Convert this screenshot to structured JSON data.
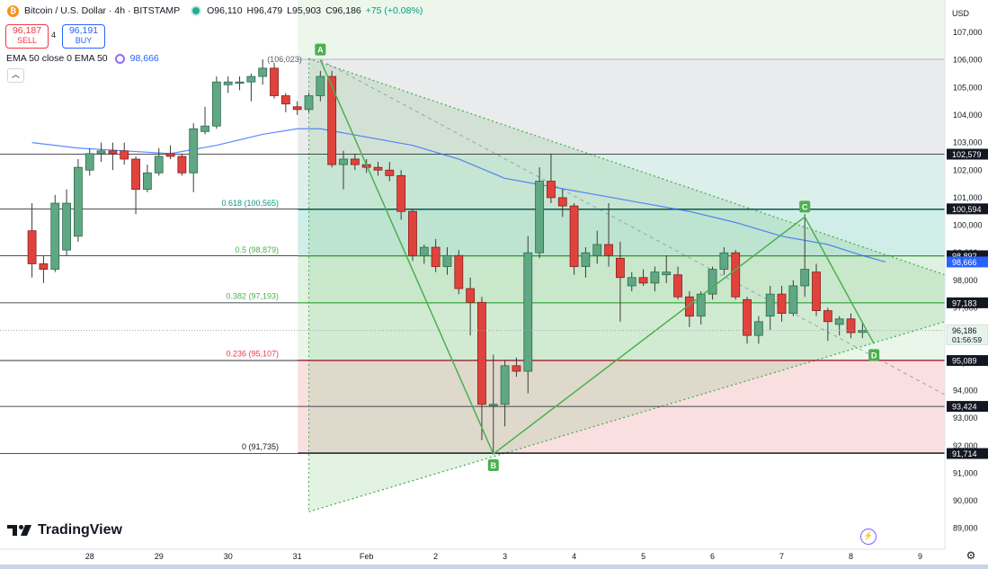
{
  "header": {
    "coin_glyph": "₿",
    "symbol_title": "Bitcoin / U.S. Dollar · 4h · BITSTAMP",
    "ohlc": {
      "open": "O96,110",
      "high": "H96,479",
      "low": "L95,903",
      "close": "C96,186",
      "change": "+75 (+0.08%)"
    },
    "sell_price": "96,187",
    "sell_label": "SELL",
    "spread": "4",
    "buy_price": "96,191",
    "buy_label": "BUY",
    "indicator_label": "EMA 50 close 0 EMA 50",
    "indicator_value": "98,666",
    "collapse_glyph": "︿"
  },
  "branding": {
    "logo_text": "TradingView"
  },
  "colors": {
    "up": "#089981",
    "down": "#f23645",
    "ema": "#2962ff",
    "pattern": "#4caf50",
    "fib_neutral": "#b2b5be",
    "price_label": "#131722"
  },
  "icons": {
    "settings": "gear-icon",
    "magnet": "magnet-icon",
    "collapse": "chevron-up-icon",
    "logo": "tradingview-logo-icon"
  },
  "chart_data": {
    "type": "candlestick",
    "title": "Bitcoin / U.S. Dollar · 4h · BITSTAMP",
    "currency_label": "USD",
    "ylim": [
      88300,
      107500
    ],
    "y_ticks": [
      89000,
      90000,
      91000,
      92000,
      93000,
      94000,
      95000,
      96000,
      97000,
      98000,
      99000,
      100000,
      101000,
      102000,
      103000,
      104000,
      105000,
      106000,
      107000
    ],
    "x_ticks": [
      {
        "label": "28",
        "i": -22
      },
      {
        "label": "29",
        "i": -16
      },
      {
        "label": "30",
        "i": -10
      },
      {
        "label": "31",
        "i": -4
      },
      {
        "label": "Feb",
        "i": 2
      },
      {
        "label": "2",
        "i": 8
      },
      {
        "label": "3",
        "i": 14
      },
      {
        "label": "4",
        "i": 20
      },
      {
        "label": "5",
        "i": 26
      },
      {
        "label": "6",
        "i": 32
      },
      {
        "label": "7",
        "i": 38
      },
      {
        "label": "8",
        "i": 44
      },
      {
        "label": "9",
        "i": 50
      }
    ],
    "candles": [
      {
        "i": -27,
        "o": 99800,
        "h": 100800,
        "l": 98100,
        "c": 98600
      },
      {
        "i": -26,
        "o": 98600,
        "h": 98900,
        "l": 97900,
        "c": 98400
      },
      {
        "i": -25,
        "o": 98400,
        "h": 101100,
        "l": 98300,
        "c": 100800
      },
      {
        "i": -24,
        "o": 99100,
        "h": 101300,
        "l": 98900,
        "c": 100800
      },
      {
        "i": -23,
        "o": 99600,
        "h": 102400,
        "l": 99400,
        "c": 102100
      },
      {
        "i": -22,
        "o": 102000,
        "h": 102800,
        "l": 101800,
        "c": 102600
      },
      {
        "i": -21,
        "o": 102600,
        "h": 103000,
        "l": 102300,
        "c": 102700
      },
      {
        "i": -20,
        "o": 102700,
        "h": 103000,
        "l": 102000,
        "c": 102600
      },
      {
        "i": -19,
        "o": 102700,
        "h": 103000,
        "l": 102200,
        "c": 102400
      },
      {
        "i": -18,
        "o": 102400,
        "h": 102500,
        "l": 100400,
        "c": 101300
      },
      {
        "i": -17,
        "o": 101300,
        "h": 102200,
        "l": 101200,
        "c": 101900
      },
      {
        "i": -16,
        "o": 101900,
        "h": 102800,
        "l": 101800,
        "c": 102500
      },
      {
        "i": -15,
        "o": 102600,
        "h": 102900,
        "l": 102400,
        "c": 102500
      },
      {
        "i": -14,
        "o": 102500,
        "h": 102600,
        "l": 101800,
        "c": 101900
      },
      {
        "i": -13,
        "o": 101900,
        "h": 103700,
        "l": 101200,
        "c": 103500
      },
      {
        "i": -12,
        "o": 103400,
        "h": 104300,
        "l": 103300,
        "c": 103600
      },
      {
        "i": -11,
        "o": 103600,
        "h": 105400,
        "l": 103500,
        "c": 105200
      },
      {
        "i": -10,
        "o": 105100,
        "h": 105400,
        "l": 104800,
        "c": 105200
      },
      {
        "i": -9,
        "o": 105200,
        "h": 105400,
        "l": 104900,
        "c": 105200
      },
      {
        "i": -8,
        "o": 105200,
        "h": 105500,
        "l": 104500,
        "c": 105400
      },
      {
        "i": -7,
        "o": 105400,
        "h": 106023,
        "l": 105100,
        "c": 105700
      },
      {
        "i": -6,
        "o": 105700,
        "h": 105900,
        "l": 104600,
        "c": 104700
      },
      {
        "i": -5,
        "o": 104700,
        "h": 104800,
        "l": 104100,
        "c": 104400
      },
      {
        "i": -4,
        "o": 104300,
        "h": 104500,
        "l": 104000,
        "c": 104200
      },
      {
        "i": -3,
        "o": 104200,
        "h": 104800,
        "l": 104100,
        "c": 104700
      },
      {
        "i": -2,
        "o": 104700,
        "h": 105600,
        "l": 104500,
        "c": 105400
      },
      {
        "i": -1,
        "o": 105400,
        "h": 105600,
        "l": 102100,
        "c": 102200
      },
      {
        "i": 0,
        "o": 102200,
        "h": 102700,
        "l": 101300,
        "c": 102400
      },
      {
        "i": 1,
        "o": 102400,
        "h": 102600,
        "l": 102000,
        "c": 102200
      },
      {
        "i": 2,
        "o": 102200,
        "h": 102400,
        "l": 101900,
        "c": 102100
      },
      {
        "i": 3,
        "o": 102100,
        "h": 102300,
        "l": 101800,
        "c": 102000
      },
      {
        "i": 4,
        "o": 102000,
        "h": 102300,
        "l": 101600,
        "c": 101800
      },
      {
        "i": 5,
        "o": 101800,
        "h": 102000,
        "l": 100200,
        "c": 100500
      },
      {
        "i": 6,
        "o": 100500,
        "h": 100600,
        "l": 98700,
        "c": 98900
      },
      {
        "i": 7,
        "o": 98900,
        "h": 99300,
        "l": 98600,
        "c": 99200
      },
      {
        "i": 8,
        "o": 99200,
        "h": 99500,
        "l": 98300,
        "c": 98500
      },
      {
        "i": 9,
        "o": 98500,
        "h": 99200,
        "l": 98200,
        "c": 98900
      },
      {
        "i": 10,
        "o": 98900,
        "h": 99100,
        "l": 97500,
        "c": 97700
      },
      {
        "i": 11,
        "o": 97700,
        "h": 98100,
        "l": 96000,
        "c": 97200
      },
      {
        "i": 12,
        "o": 97200,
        "h": 97400,
        "l": 92200,
        "c": 93500
      },
      {
        "i": 13,
        "o": 93500,
        "h": 95300,
        "l": 91735,
        "c": 93500
      },
      {
        "i": 14,
        "o": 93500,
        "h": 95100,
        "l": 92700,
        "c": 94900
      },
      {
        "i": 15,
        "o": 94900,
        "h": 95200,
        "l": 94500,
        "c": 94700
      },
      {
        "i": 16,
        "o": 94700,
        "h": 99600,
        "l": 93900,
        "c": 99000
      },
      {
        "i": 17,
        "o": 99000,
        "h": 102100,
        "l": 98800,
        "c": 101600
      },
      {
        "i": 18,
        "o": 101600,
        "h": 102600,
        "l": 100800,
        "c": 101000
      },
      {
        "i": 19,
        "o": 101000,
        "h": 101300,
        "l": 100300,
        "c": 100700
      },
      {
        "i": 20,
        "o": 100700,
        "h": 100800,
        "l": 98200,
        "c": 98500
      },
      {
        "i": 21,
        "o": 98500,
        "h": 99200,
        "l": 98100,
        "c": 99000
      },
      {
        "i": 22,
        "o": 98900,
        "h": 99800,
        "l": 98600,
        "c": 99300
      },
      {
        "i": 23,
        "o": 99300,
        "h": 100800,
        "l": 98500,
        "c": 98900
      },
      {
        "i": 24,
        "o": 98800,
        "h": 99400,
        "l": 96500,
        "c": 98100
      },
      {
        "i": 25,
        "o": 97800,
        "h": 98300,
        "l": 97600,
        "c": 98100
      },
      {
        "i": 26,
        "o": 98100,
        "h": 98400,
        "l": 97800,
        "c": 97900
      },
      {
        "i": 27,
        "o": 97900,
        "h": 98500,
        "l": 97600,
        "c": 98300
      },
      {
        "i": 28,
        "o": 98200,
        "h": 98900,
        "l": 97900,
        "c": 98300
      },
      {
        "i": 29,
        "o": 98200,
        "h": 98500,
        "l": 97300,
        "c": 97400
      },
      {
        "i": 30,
        "o": 97400,
        "h": 97600,
        "l": 96300,
        "c": 96700
      },
      {
        "i": 31,
        "o": 96700,
        "h": 97600,
        "l": 96400,
        "c": 97500
      },
      {
        "i": 32,
        "o": 97500,
        "h": 98500,
        "l": 97300,
        "c": 98400
      },
      {
        "i": 33,
        "o": 98400,
        "h": 99200,
        "l": 98200,
        "c": 99000
      },
      {
        "i": 34,
        "o": 99000,
        "h": 99100,
        "l": 97300,
        "c": 97400
      },
      {
        "i": 35,
        "o": 97300,
        "h": 97400,
        "l": 95700,
        "c": 96000
      },
      {
        "i": 36,
        "o": 96000,
        "h": 96700,
        "l": 95700,
        "c": 96500
      },
      {
        "i": 37,
        "o": 96700,
        "h": 97800,
        "l": 96200,
        "c": 97500
      },
      {
        "i": 38,
        "o": 97500,
        "h": 97800,
        "l": 96500,
        "c": 96800
      },
      {
        "i": 39,
        "o": 96800,
        "h": 98000,
        "l": 96700,
        "c": 97800
      },
      {
        "i": 40,
        "o": 97800,
        "h": 100400,
        "l": 97400,
        "c": 98400
      },
      {
        "i": 41,
        "o": 98300,
        "h": 98600,
        "l": 96700,
        "c": 96900
      },
      {
        "i": 42,
        "o": 96900,
        "h": 97000,
        "l": 95800,
        "c": 96500
      },
      {
        "i": 43,
        "o": 96400,
        "h": 96700,
        "l": 96000,
        "c": 96600
      },
      {
        "i": 44,
        "o": 96600,
        "h": 96800,
        "l": 95900,
        "c": 96100
      },
      {
        "i": 45,
        "o": 96110,
        "h": 96479,
        "l": 95903,
        "c": 96186
      }
    ],
    "ema50": [
      [
        -27,
        103000
      ],
      [
        -23,
        102800
      ],
      [
        -19,
        102700
      ],
      [
        -15,
        102600
      ],
      [
        -11,
        102900
      ],
      [
        -7,
        103300
      ],
      [
        -4,
        103500
      ],
      [
        -2,
        103500
      ],
      [
        2,
        103200
      ],
      [
        6,
        102900
      ],
      [
        10,
        102400
      ],
      [
        14,
        101700
      ],
      [
        18,
        101400
      ],
      [
        22,
        101100
      ],
      [
        26,
        100800
      ],
      [
        30,
        100500
      ],
      [
        34,
        100100
      ],
      [
        38,
        99600
      ],
      [
        42,
        99300
      ],
      [
        45,
        98900
      ],
      [
        47,
        98666
      ]
    ],
    "fib_levels": [
      {
        "ratio_label": "0.618 (100,565)",
        "price": 100565,
        "color": "#089981"
      },
      {
        "ratio_label": "0.5 (98,879)",
        "price": 98879,
        "color": "#4caf50"
      },
      {
        "ratio_label": "0.382 (97,193)",
        "price": 97193,
        "color": "#4caf50"
      },
      {
        "ratio_label": "0.236 (95,107)",
        "price": 95107,
        "color": "#f23645"
      },
      {
        "ratio_label": "0 (91,735)",
        "price": 91735,
        "color": "#131722"
      }
    ],
    "hlines": [
      {
        "label": "102,579",
        "price": 102579
      },
      {
        "label": "100,594",
        "price": 100594
      },
      {
        "label": "98,892",
        "price": 98892
      },
      {
        "label": "97,183",
        "price": 97183
      },
      {
        "label": "95,089",
        "price": 95089
      },
      {
        "label": "93,424",
        "price": 93424
      },
      {
        "label": "91,714",
        "price": 91714
      }
    ],
    "pattern_points": [
      {
        "label": "A",
        "i": -2,
        "price": 106000
      },
      {
        "label": "B",
        "i": 13,
        "price": 91700
      },
      {
        "label": "C",
        "i": 40,
        "price": 100300
      },
      {
        "label": "D",
        "i": 46,
        "price": 95700
      }
    ],
    "high_annotation": {
      "label": "(106,023)",
      "i": -7,
      "price": 106023
    },
    "ema_tag": {
      "label": "98,666",
      "price": 98666
    },
    "last_price": {
      "label": "96,186",
      "countdown": "01:56:59",
      "price": 96186
    }
  }
}
